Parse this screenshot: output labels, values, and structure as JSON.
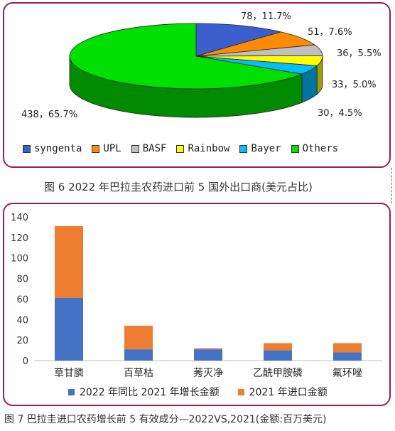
{
  "figure6": {
    "caption": "图 6 2022 年巴拉圭农药进口前 5 国外出口商(美元占比)",
    "chart_data": {
      "type": "pie",
      "slices": [
        {
          "name": "syngenta",
          "value": 78,
          "percent": "11.7%",
          "label": "78，11.7%",
          "color": "#3a5fcd"
        },
        {
          "name": "UPL",
          "value": 51,
          "percent": "7.6%",
          "label": "51，7.6%",
          "color": "#ff8c00"
        },
        {
          "name": "BASF",
          "value": 36,
          "percent": "5.5%",
          "label": "36，5.5%",
          "color": "#c0c0c0"
        },
        {
          "name": "Rainbow",
          "value": 33,
          "percent": "5.0%",
          "label": "33，5.0%",
          "color": "#ffff00"
        },
        {
          "name": "Bayer",
          "value": 30,
          "percent": "4.5%",
          "label": "30，4.5%",
          "color": "#00bfff"
        },
        {
          "name": "Others",
          "value": 438,
          "percent": "65.7%",
          "label": "438，65.7%",
          "color": "#00e000"
        }
      ],
      "legend_position": "bottom"
    }
  },
  "figure7": {
    "caption": "图 7 巴拉圭进口农药增长前 5 有效成分—2022VS,2021(金额:百万美元)",
    "chart_data": {
      "type": "bar",
      "stacked": true,
      "categories": [
        "草甘膦",
        "百草枯",
        "莠灭净",
        "乙酰甲胺磷",
        "氟环唑"
      ],
      "series": [
        {
          "name": "2022 年同比 2021 年增长金额",
          "values": [
            61,
            11,
            11,
            10,
            8
          ],
          "color": "#4472c4"
        },
        {
          "name": "2021 年进口金额",
          "values": [
            70,
            23,
            1,
            7,
            9
          ],
          "color": "#ed7d31"
        }
      ],
      "ylim": [
        0,
        140
      ],
      "yticks": [
        0,
        20,
        40,
        60,
        80,
        100,
        120,
        140
      ],
      "legend_position": "bottom",
      "grid": false
    }
  }
}
